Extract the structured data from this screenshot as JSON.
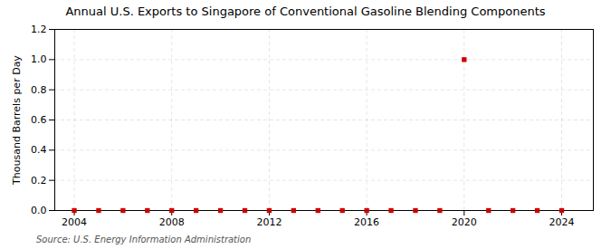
{
  "chart_data": {
    "type": "scatter",
    "title": "Annual U.S. Exports to Singapore of Conventional Gasoline Blending Components",
    "ylabel": "Thousand Barrels per Day",
    "source": "Source: U.S. Energy Information Administration",
    "x": [
      2004,
      2005,
      2006,
      2007,
      2008,
      2009,
      2010,
      2011,
      2012,
      2013,
      2014,
      2015,
      2016,
      2017,
      2018,
      2019,
      2020,
      2021,
      2022,
      2023,
      2024
    ],
    "values": [
      0.0,
      0.0,
      0.0,
      0.0,
      0.0,
      0.0,
      0.0,
      0.0,
      0.0,
      0.0,
      0.0,
      0.0,
      0.0,
      0.0,
      0.0,
      0.0,
      1.0,
      0.0,
      0.0,
      0.0,
      0.0
    ],
    "color": "#cc0000",
    "marker": "square",
    "xlim": [
      2003.2,
      2025.3
    ],
    "ylim": [
      0.0,
      1.2
    ],
    "xticks": [
      2004,
      2008,
      2012,
      2016,
      2020,
      2024
    ],
    "yticks": [
      {
        "value": 0.0,
        "label": "0.0"
      },
      0.2,
      0.4,
      0.6,
      0.8,
      {
        "value": 1.0,
        "label": "1.0"
      },
      1.2
    ],
    "grid": true
  }
}
